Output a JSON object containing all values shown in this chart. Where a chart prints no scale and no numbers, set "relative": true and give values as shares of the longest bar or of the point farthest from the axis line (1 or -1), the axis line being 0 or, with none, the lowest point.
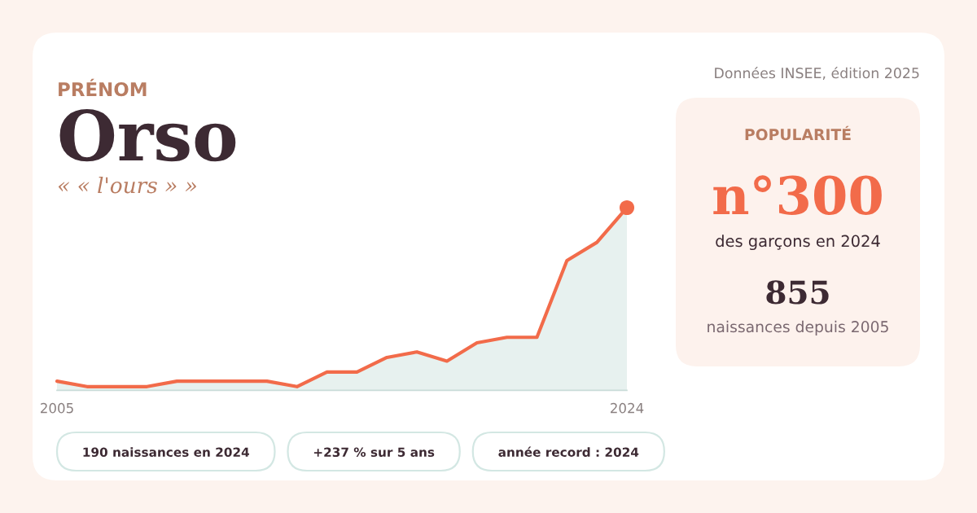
{
  "chart_data": {
    "type": "area",
    "title": "Orso",
    "subtitle": "« « l'ours » »",
    "x": [
      2005,
      2006,
      2007,
      2008,
      2009,
      2010,
      2011,
      2012,
      2013,
      2014,
      2015,
      2016,
      2017,
      2018,
      2019,
      2020,
      2021,
      2022,
      2023,
      2024
    ],
    "xlim": [
      2005,
      2024
    ],
    "xticks": [
      2005,
      2024
    ],
    "relative": true,
    "tick_labels": "x",
    "line_style": "solid",
    "series": [
      {
        "color": "#f26b4a",
        "values": [
          0.05,
          0.02,
          0.02,
          0.02,
          0.05,
          0.05,
          0.05,
          0.05,
          0.02,
          0.1,
          0.1,
          0.18,
          0.21,
          0.16,
          0.26,
          0.29,
          0.29,
          0.71,
          0.81,
          1
        ]
      },
      {
        "type": "scatter",
        "color": "#f26b4a",
        "marker": "circle",
        "x": [
          2024
        ],
        "values": [
          1
        ]
      }
    ],
    "annotations": [
      "PRÉNOM",
      "Données INSEE, édition 2025",
      "POPULARITÉ",
      "n°300",
      "des garçons en 2024",
      "855",
      "naissances depuis 2005",
      "190 naissances en 2024",
      "+237 % sur 5 ans",
      "année record : 2024"
    ]
  }
}
